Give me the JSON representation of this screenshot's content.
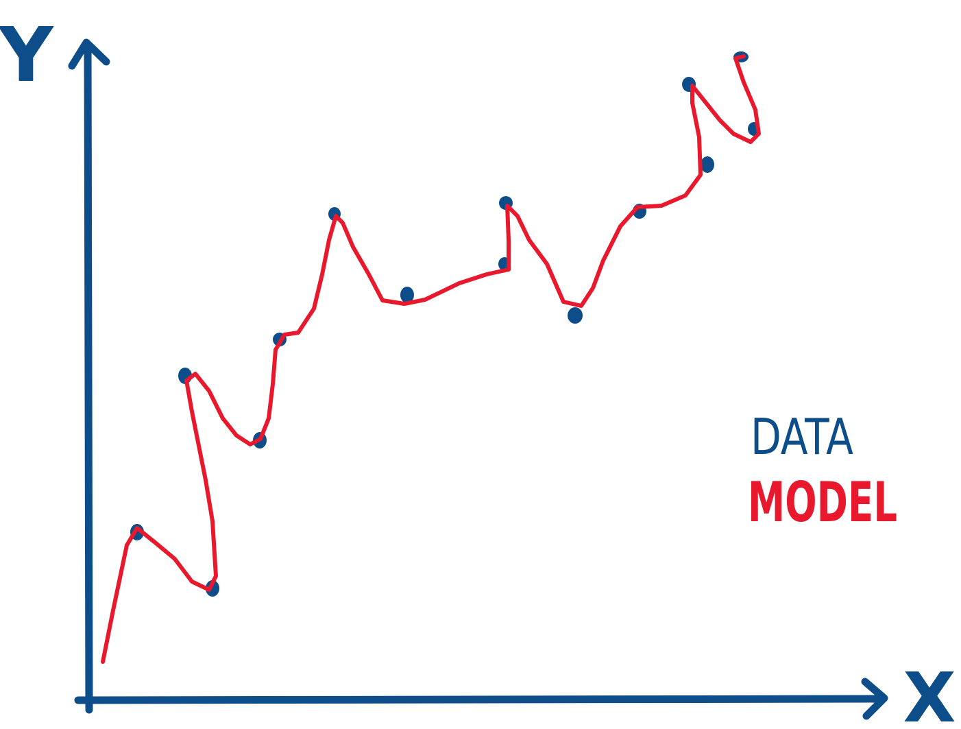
{
  "axis_labels": {
    "y": "Y",
    "x": "X"
  },
  "legend": {
    "data": "DATA",
    "model": "MODEL"
  }
}
